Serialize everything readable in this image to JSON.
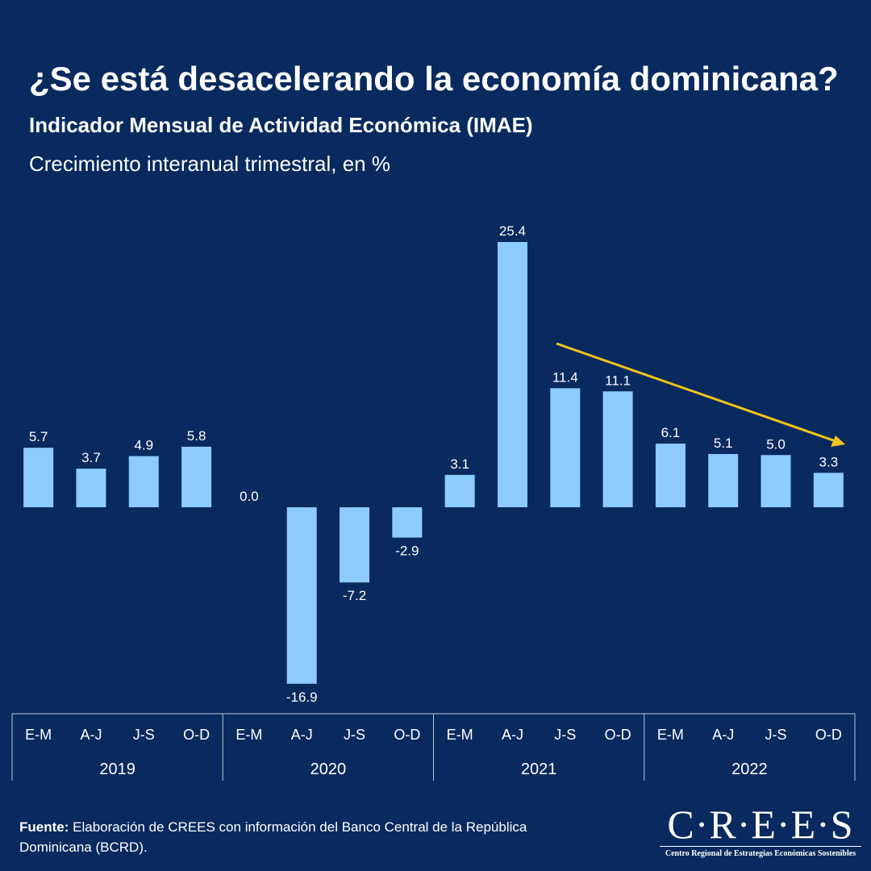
{
  "chart_data": {
    "type": "bar",
    "title": "¿Se está desacelerando la economía dominicana?",
    "subtitle": "Indicador Mensual de Actividad Económica (IMAE)",
    "description": "Crecimiento interanual trimestral, en %",
    "categories": [
      "E-M",
      "A-J",
      "J-S",
      "O-D",
      "E-M",
      "A-J",
      "J-S",
      "O-D",
      "E-M",
      "A-J",
      "J-S",
      "O-D",
      "E-M",
      "A-J",
      "J-S",
      "O-D"
    ],
    "groups": [
      "2019",
      "2020",
      "2021",
      "2022"
    ],
    "values": [
      5.7,
      3.7,
      4.9,
      5.8,
      0.0,
      -16.9,
      -7.2,
      -2.9,
      3.1,
      25.4,
      11.4,
      11.1,
      6.1,
      5.1,
      5.0,
      3.3
    ],
    "value_labels": [
      "5.7",
      "3.7",
      "4.9",
      "5.8",
      "0.0",
      "-16.9",
      "-7.2",
      "-2.9",
      "3.1",
      "25.4",
      "11.4",
      "11.1",
      "6.1",
      "5.1",
      "5.0",
      "3.3"
    ],
    "color": "#8ecbff"
  },
  "footer": {
    "label": "Fuente:",
    "text": "Elaboración de CREES con información del Banco Central de la República Dominicana (BCRD)."
  },
  "logo": {
    "name": "C·R·E·E·S",
    "tagline": "Centro Regional de Estrategias Económicas Sostenibles"
  }
}
